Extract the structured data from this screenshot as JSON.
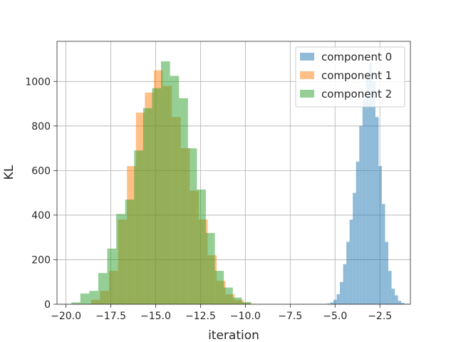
{
  "chart_data": {
    "type": "histogram",
    "title": "",
    "xlabel": "iteration",
    "ylabel": "KL",
    "xlim": [
      -20.5,
      -0.8
    ],
    "ylim": [
      0,
      1180
    ],
    "xticks": [
      -20.0,
      -17.5,
      -15.0,
      -12.5,
      -10.0,
      -7.5,
      -5.0,
      -2.5
    ],
    "xtick_labels": [
      "−20.0",
      "−17.5",
      "−15.0",
      "−12.5",
      "−10.0",
      "−7.5",
      "−5.0",
      "−2.5"
    ],
    "yticks": [
      0,
      200,
      400,
      600,
      800,
      1000
    ],
    "ytick_labels": [
      "0",
      "200",
      "400",
      "600",
      "800",
      "1000"
    ],
    "grid": true,
    "legend_position": "top-right",
    "series": [
      {
        "name": "component 0",
        "color": "#1f77b4",
        "opacity": 0.5,
        "bin_start": -5.45,
        "bin_width": 0.18,
        "counts": [
          3,
          8,
          20,
          45,
          100,
          180,
          280,
          380,
          500,
          640,
          800,
          920,
          1030,
          1080,
          1000,
          840,
          620,
          450,
          280,
          150,
          70,
          40,
          15,
          6,
          2
        ]
      },
      {
        "name": "component 1",
        "color": "#ff7f0e",
        "opacity": 0.5,
        "bin_start": -18.6,
        "bin_width": 0.5,
        "counts": [
          20,
          60,
          150,
          380,
          620,
          860,
          950,
          1050,
          980,
          840,
          700,
          510,
          380,
          220,
          105,
          45,
          20,
          5
        ]
      },
      {
        "name": "component 2",
        "color": "#2ca02c",
        "opacity": 0.5,
        "bin_start": -19.7,
        "bin_width": 0.5,
        "counts": [
          8,
          48,
          60,
          140,
          250,
          405,
          470,
          690,
          880,
          970,
          1090,
          1025,
          925,
          700,
          515,
          320,
          150,
          75,
          30,
          10
        ]
      }
    ]
  }
}
